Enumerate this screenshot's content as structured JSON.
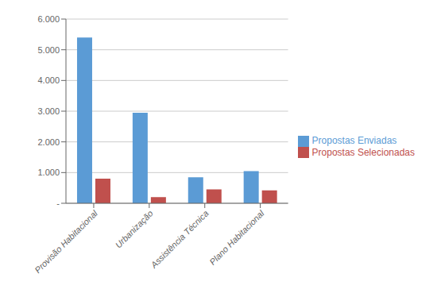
{
  "chart_data": {
    "type": "bar",
    "categories": [
      "Provisão Habitacional",
      "Urbanização",
      "Assistência Técnica",
      "Plano Habitacional"
    ],
    "series": [
      {
        "name": "Propostas Enviadas",
        "color": "#5B9BD5",
        "values": [
          5400,
          2950,
          850,
          1050
        ]
      },
      {
        "name": "Propostas Selecionadas",
        "color": "#C0504D",
        "values": [
          800,
          200,
          450,
          420
        ]
      }
    ],
    "ylim": [
      0,
      6000
    ],
    "yticks": [
      {
        "value": 0,
        "label": "-"
      },
      {
        "value": 1000,
        "label": "1.000"
      },
      {
        "value": 2000,
        "label": "2.000"
      },
      {
        "value": 3000,
        "label": "3.000"
      },
      {
        "value": 4000,
        "label": "4.000"
      },
      {
        "value": 5000,
        "label": "5.000"
      },
      {
        "value": 6000,
        "label": "6.000"
      }
    ],
    "grid": true,
    "legend": "right"
  }
}
